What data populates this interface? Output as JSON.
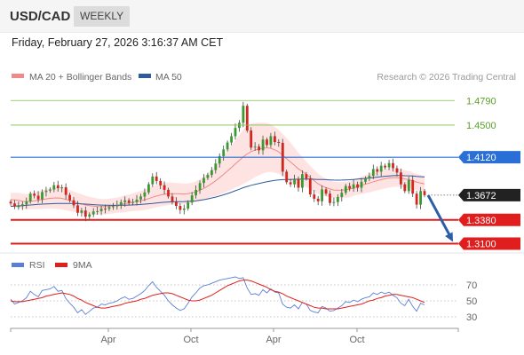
{
  "header": {
    "symbol": "USD/CAD",
    "timeframe": "WEEKLY",
    "datetime": "Friday, February 27, 2026 3:16:37 AM CET"
  },
  "legend": {
    "ma20": {
      "label": "MA 20 + Bollinger Bands",
      "color": "#f08a8a"
    },
    "ma50": {
      "label": "MA 50",
      "color": "#2f5a9e"
    },
    "rsi": {
      "label": "RSI",
      "color": "#5b7fd6"
    },
    "rsi_ma": {
      "label": "9MA",
      "color": "#e0201c"
    }
  },
  "credit": "Research © 2026 Trading Central",
  "levels": [
    {
      "value": 1.479,
      "label": "1.4790",
      "style": "resistance-green",
      "color": "#7cc04b"
    },
    {
      "value": 1.45,
      "label": "1.4500",
      "style": "resistance-green",
      "color": "#7cc04b"
    },
    {
      "value": 1.412,
      "label": "1.4120",
      "style": "pivot",
      "color": "#2a6fd6"
    },
    {
      "value": 1.3672,
      "label": "1.3672",
      "style": "last-price",
      "color": "#222222"
    },
    {
      "value": 1.338,
      "label": "1.3380",
      "style": "support-red",
      "color": "#e01e1e"
    },
    {
      "value": 1.31,
      "label": "1.3100",
      "style": "support-red",
      "color": "#e01e1e"
    }
  ],
  "rsi_levels": [
    "70",
    "50",
    "30"
  ],
  "x_labels": [
    "Apr",
    "Oct",
    "Apr",
    "Oct"
  ],
  "colors": {
    "bull": "#3b9a2f",
    "bear": "#d4261e",
    "band_fill": "#fde3e1",
    "arrow": "#2a5ea8"
  },
  "chart_data": {
    "type": "candlestick",
    "title": "USD/CAD",
    "timeframe": "Weekly",
    "ylim": [
      1.3,
      1.495
    ],
    "rsi_ylim": [
      20,
      80
    ],
    "price_series": [
      {
        "name": "close",
        "values": [
          1.3574,
          1.3539,
          1.3543,
          1.3565,
          1.3597,
          1.3689,
          1.3666,
          1.3622,
          1.3709,
          1.3725,
          1.3739,
          1.3789,
          1.3753,
          1.3765,
          1.3675,
          1.3611,
          1.3551,
          1.3464,
          1.3491,
          1.3417,
          1.3444,
          1.348,
          1.3483,
          1.3513,
          1.351,
          1.353,
          1.354,
          1.3555,
          1.3589,
          1.3611,
          1.3582,
          1.3591,
          1.362,
          1.3656,
          1.3705,
          1.3801,
          1.3892,
          1.384,
          1.3789,
          1.3735,
          1.3656,
          1.3594,
          1.3545,
          1.3498,
          1.3514,
          1.3586,
          1.367,
          1.3734,
          1.3815,
          1.3875,
          1.3911,
          1.3967,
          1.4045,
          1.4133,
          1.4212,
          1.4294,
          1.4368,
          1.4466,
          1.4528,
          1.4728,
          1.4436,
          1.4234,
          1.4245,
          1.4202,
          1.4329,
          1.4264,
          1.4369,
          1.43,
          1.429,
          1.395,
          1.3825,
          1.38,
          1.386,
          1.376,
          1.392,
          1.387,
          1.368,
          1.363,
          1.36,
          1.374,
          1.369,
          1.358,
          1.359,
          1.365,
          1.37,
          1.378,
          1.375,
          1.38,
          1.376,
          1.383,
          1.387,
          1.39,
          1.398,
          1.395,
          1.402,
          1.4,
          1.405,
          1.399,
          1.394,
          1.38,
          1.372,
          1.385,
          1.369,
          1.356,
          1.372,
          1.3672
        ]
      }
    ],
    "ma20": [
      1.362,
      1.3615,
      1.361,
      1.36,
      1.3595,
      1.36,
      1.3605,
      1.3612,
      1.362,
      1.3628,
      1.3634,
      1.3638,
      1.364,
      1.3634,
      1.3622,
      1.3609,
      1.3594,
      1.358,
      1.3568,
      1.3556,
      1.3548,
      1.3542,
      1.3538,
      1.3536,
      1.3536,
      1.354,
      1.3546,
      1.3553,
      1.3561,
      1.3571,
      1.3579,
      1.3588,
      1.3597,
      1.3606,
      1.3617,
      1.3631,
      1.3647,
      1.3662,
      1.3674,
      1.3683,
      1.3688,
      1.369,
      1.369,
      1.3688,
      1.3686,
      1.369,
      1.3699,
      1.3712,
      1.373,
      1.3752,
      1.3779,
      1.3809,
      1.3842,
      1.3879,
      1.3917,
      1.3957,
      1.3998,
      1.4041,
      1.4082,
      1.4124,
      1.4158,
      1.4186,
      1.4206,
      1.4216,
      1.4228,
      1.4232,
      1.4226,
      1.4208,
      1.4184,
      1.4146,
      1.4104,
      1.4064,
      1.4024,
      1.3982,
      1.3952,
      1.3917,
      1.388,
      1.3843,
      1.3806,
      1.3781,
      1.3761,
      1.3745,
      1.3733,
      1.373,
      1.3731,
      1.3737,
      1.3743,
      1.3757,
      1.3775,
      1.3789,
      1.3802,
      1.3815,
      1.383,
      1.3843,
      1.3855,
      1.3866,
      1.3876,
      1.388,
      1.388,
      1.3874,
      1.3864,
      1.3856,
      1.3842,
      1.3827,
      1.3815,
      1.3805
    ],
    "ma50": [
      1.354,
      1.3542,
      1.3545,
      1.3548,
      1.3552,
      1.3556,
      1.356,
      1.3563,
      1.3566,
      1.3568,
      1.357,
      1.3572,
      1.3574,
      1.3575,
      1.3575,
      1.3574,
      1.3573,
      1.3571,
      1.3569,
      1.3566,
      1.3563,
      1.356,
      1.3557,
      1.3555,
      1.3553,
      1.3552,
      1.3551,
      1.3551,
      1.3552,
      1.3553,
      1.3555,
      1.3557,
      1.3559,
      1.3562,
      1.3566,
      1.357,
      1.3575,
      1.358,
      1.3584,
      1.3588,
      1.3591,
      1.3593,
      1.3595,
      1.3596,
      1.3597,
      1.3599,
      1.3602,
      1.3606,
      1.3612,
      1.3619,
      1.3628,
      1.3638,
      1.3649,
      1.3662,
      1.3676,
      1.3691,
      1.3707,
      1.3724,
      1.3741,
      1.376,
      1.3775,
      1.3788,
      1.3799,
      1.3809,
      1.382,
      1.383,
      1.3839,
      1.3846,
      1.3852,
      1.3855,
      1.3857,
      1.3858,
      1.386,
      1.386,
      1.3862,
      1.3863,
      1.3862,
      1.386,
      1.3858,
      1.3857,
      1.3855,
      1.3852,
      1.385,
      1.3849,
      1.385,
      1.3852,
      1.3854,
      1.3858,
      1.3862,
      1.3866,
      1.387,
      1.3874,
      1.388,
      1.3885,
      1.389,
      1.3895,
      1.39,
      1.3903,
      1.3905,
      1.3904,
      1.3902,
      1.3901,
      1.3898,
      1.3893,
      1.389,
      1.3887
    ],
    "rsi": [
      52,
      46,
      48,
      50,
      54,
      62,
      58,
      55,
      63,
      64,
      65,
      68,
      62,
      63,
      53,
      47,
      42,
      35,
      39,
      33,
      37,
      41,
      42,
      46,
      45,
      47,
      48,
      50,
      53,
      55,
      52,
      53,
      56,
      59,
      63,
      69,
      74,
      67,
      62,
      57,
      50,
      45,
      41,
      38,
      40,
      47,
      55,
      60,
      66,
      69,
      70,
      72,
      74,
      76,
      77,
      78,
      79,
      80,
      78,
      79,
      66,
      58,
      59,
      57,
      64,
      60,
      65,
      61,
      60,
      46,
      42,
      41,
      45,
      40,
      48,
      46,
      38,
      36,
      35,
      43,
      41,
      37,
      38,
      41,
      44,
      49,
      48,
      51,
      49,
      52,
      54,
      55,
      60,
      58,
      61,
      59,
      61,
      57,
      54,
      47,
      44,
      52,
      43,
      37,
      47,
      45
    ],
    "rsi_ma": [
      50,
      49,
      49,
      49,
      50,
      51,
      52,
      53,
      54,
      56,
      57,
      58,
      59,
      60,
      59,
      58,
      56,
      53,
      51,
      48,
      46,
      44,
      42,
      41,
      41,
      42,
      43,
      44,
      45,
      47,
      48,
      49,
      50,
      52,
      53,
      55,
      57,
      58,
      59,
      60,
      60,
      59,
      57,
      55,
      53,
      51,
      50,
      50,
      51,
      53,
      55,
      57,
      60,
      63,
      66,
      69,
      71,
      73,
      75,
      76,
      76,
      75,
      73,
      71,
      69,
      67,
      64,
      62,
      61,
      59,
      56,
      54,
      52,
      50,
      48,
      46,
      44,
      42,
      41,
      41,
      40,
      40,
      40,
      40,
      41,
      42,
      43,
      44,
      45,
      46,
      48,
      50,
      51,
      53,
      54,
      56,
      57,
      58,
      58,
      57,
      56,
      55,
      54,
      52,
      50,
      48
    ],
    "band_halfwidth": [
      0.008,
      0.0085,
      0.009,
      0.009,
      0.009,
      0.0095,
      0.01,
      0.0105,
      0.011,
      0.0115,
      0.012,
      0.0125,
      0.013,
      0.013,
      0.0128,
      0.0125,
      0.012,
      0.0118,
      0.0115,
      0.011,
      0.0105,
      0.01,
      0.0095,
      0.009,
      0.009,
      0.009,
      0.009,
      0.009,
      0.0095,
      0.01,
      0.01,
      0.0105,
      0.011,
      0.0115,
      0.012,
      0.0125,
      0.013,
      0.0133,
      0.0135,
      0.0135,
      0.0133,
      0.013,
      0.0128,
      0.0125,
      0.0122,
      0.012,
      0.012,
      0.0125,
      0.013,
      0.014,
      0.015,
      0.016,
      0.018,
      0.02,
      0.022,
      0.024,
      0.026,
      0.028,
      0.03,
      0.032,
      0.033,
      0.033,
      0.032,
      0.031,
      0.03,
      0.029,
      0.028,
      0.027,
      0.026,
      0.025,
      0.024,
      0.023,
      0.021,
      0.019,
      0.017,
      0.015,
      0.014,
      0.013,
      0.012,
      0.011,
      0.0105,
      0.01,
      0.0098,
      0.0096,
      0.0095,
      0.0095,
      0.0095,
      0.0095,
      0.0098,
      0.0102,
      0.0106,
      0.011,
      0.0112,
      0.0114,
      0.0115,
      0.0115,
      0.0113,
      0.011,
      0.0108,
      0.0105,
      0.0103,
      0.01,
      0.0098,
      0.0097,
      0.0096,
      0.0095
    ],
    "forecast": {
      "from": 1.3672,
      "to": 1.31
    }
  }
}
